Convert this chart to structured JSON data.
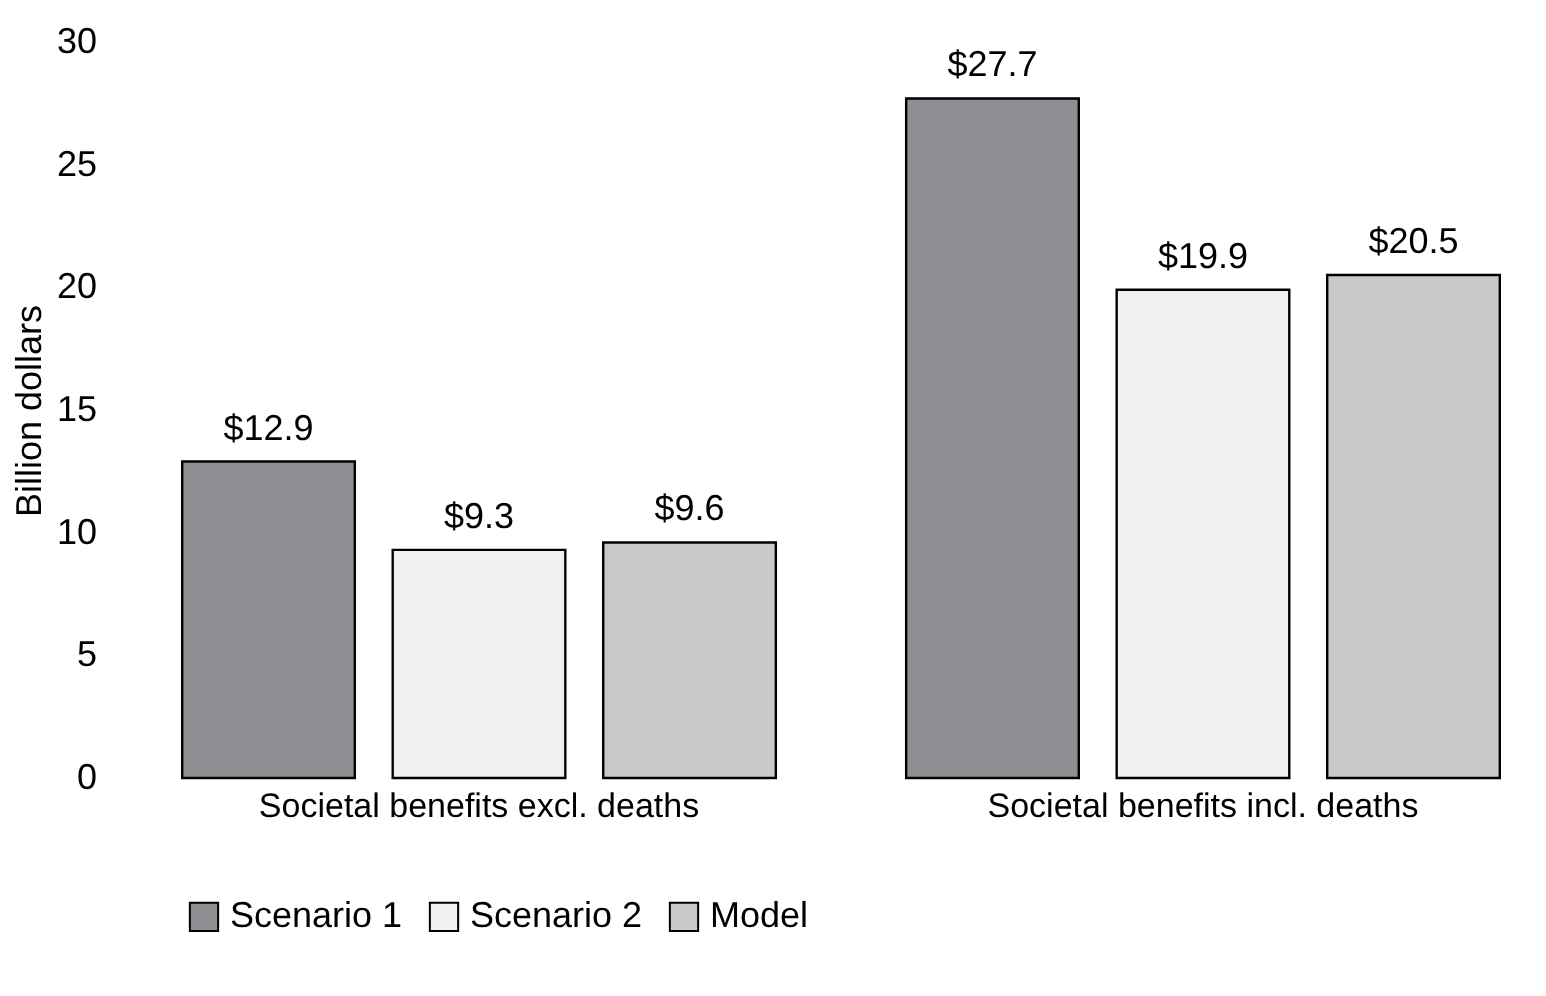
{
  "chart_data": {
    "type": "bar",
    "ylabel": "Billion dollars",
    "categories": [
      "Societal benefits excl. deaths",
      "Societal benefits incl. deaths"
    ],
    "series": [
      {
        "name": "Scenario 1",
        "color": "#8e8f92",
        "values": [
          12.9,
          27.7
        ],
        "value_labels": [
          "$12.9",
          "$27.7"
        ]
      },
      {
        "name": "Scenario 2",
        "color": "#f1f1f2",
        "values": [
          9.3,
          19.9
        ],
        "value_labels": [
          "$9.3",
          "$19.9"
        ]
      },
      {
        "name": "Model",
        "color": "#c8c9cb",
        "values": [
          9.6,
          20.5
        ],
        "value_labels": [
          "$9.6",
          "$20.5"
        ]
      }
    ],
    "ylim": [
      0,
      30
    ],
    "yticks": [
      0,
      5,
      10,
      15,
      20,
      25,
      30
    ],
    "grid": false,
    "legend": "bottom"
  }
}
